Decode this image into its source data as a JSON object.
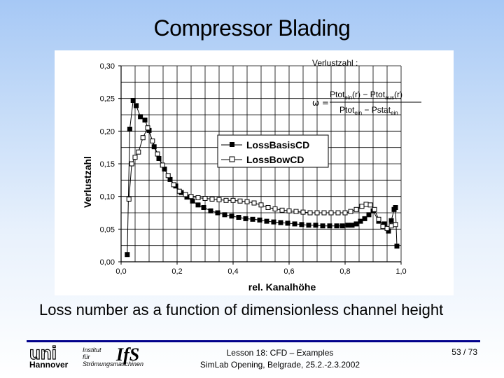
{
  "slide": {
    "title": "Compressor Blading",
    "caption": "Loss number as a function of dimensionless channel height"
  },
  "footer": {
    "lesson": "Lesson 18: CFD – Examples",
    "event": "SimLab Opening, Belgrade, 25.2.-2.3.2002",
    "page": "53 / 73",
    "logo_uni": "uni",
    "logo_hannover": "Hannover",
    "logo_institut_line1": "Institut",
    "logo_institut_line2": "für",
    "logo_institut_line3": "Strömungsmaschinen",
    "logo_ifs": "IfS",
    "rule_color": "#00008b"
  },
  "formula": {
    "label": "Verlustzahl :",
    "symbol": "ω =",
    "numerator": [
      "Ptot",
      "ein",
      "(r) − Ptot",
      "aus",
      "(r)"
    ],
    "denominator": [
      "Ptot",
      "ein",
      " − Pstat",
      "ein"
    ]
  },
  "chart_data": {
    "type": "line",
    "xlabel": "rel. Kanalhöhe",
    "ylabel": "Verlustzahl",
    "xlim": [
      0,
      1
    ],
    "ylim": [
      0,
      0.3
    ],
    "xticks": [
      "0,0",
      "0,2",
      "0,4",
      "0,6",
      "0,8",
      "1,0"
    ],
    "xtick_values": [
      0,
      0.2,
      0.4,
      0.6,
      0.8,
      1.0
    ],
    "yticks": [
      "0,00",
      "0,05",
      "0,10",
      "0,15",
      "0,20",
      "0,25",
      "0,30"
    ],
    "ytick_values": [
      0,
      0.05,
      0.1,
      0.15,
      0.2,
      0.25,
      0.3
    ],
    "grid": true,
    "legend_position": "center",
    "series": [
      {
        "name": "LossBasisCD",
        "marker": "filled-square",
        "color": "#000000",
        "x": [
          0.022,
          0.031,
          0.043,
          0.054,
          0.069,
          0.085,
          0.1,
          0.118,
          0.135,
          0.155,
          0.175,
          0.195,
          0.215,
          0.235,
          0.255,
          0.275,
          0.295,
          0.32,
          0.345,
          0.37,
          0.395,
          0.42,
          0.445,
          0.47,
          0.495,
          0.52,
          0.545,
          0.57,
          0.595,
          0.62,
          0.645,
          0.67,
          0.695,
          0.72,
          0.745,
          0.77,
          0.79,
          0.81,
          0.825,
          0.84,
          0.855,
          0.87,
          0.885,
          0.9,
          0.92,
          0.94,
          0.955,
          0.965,
          0.975,
          0.98,
          0.985
        ],
        "y": [
          0.011,
          0.203,
          0.247,
          0.239,
          0.222,
          0.217,
          0.201,
          0.176,
          0.158,
          0.142,
          0.126,
          0.116,
          0.106,
          0.099,
          0.093,
          0.087,
          0.083,
          0.078,
          0.075,
          0.072,
          0.07,
          0.068,
          0.066,
          0.065,
          0.064,
          0.062,
          0.061,
          0.06,
          0.059,
          0.058,
          0.057,
          0.056,
          0.056,
          0.055,
          0.055,
          0.055,
          0.055,
          0.056,
          0.056,
          0.058,
          0.062,
          0.066,
          0.072,
          0.078,
          0.062,
          0.058,
          0.047,
          0.063,
          0.08,
          0.083,
          0.024
        ]
      },
      {
        "name": "LossBowCD",
        "marker": "open-square",
        "color": "#000000",
        "x": [
          0.028,
          0.038,
          0.05,
          0.062,
          0.078,
          0.095,
          0.112,
          0.13,
          0.148,
          0.168,
          0.188,
          0.208,
          0.23,
          0.25,
          0.275,
          0.3,
          0.325,
          0.35,
          0.375,
          0.4,
          0.425,
          0.45,
          0.475,
          0.5,
          0.525,
          0.55,
          0.575,
          0.6,
          0.625,
          0.65,
          0.675,
          0.7,
          0.725,
          0.75,
          0.775,
          0.8,
          0.82,
          0.84,
          0.86,
          0.875,
          0.89,
          0.905,
          0.92,
          0.935,
          0.95,
          0.965,
          0.98
        ],
        "y": [
          0.096,
          0.15,
          0.16,
          0.168,
          0.19,
          0.205,
          0.185,
          0.165,
          0.148,
          0.132,
          0.118,
          0.108,
          0.103,
          0.1,
          0.098,
          0.097,
          0.096,
          0.095,
          0.094,
          0.094,
          0.093,
          0.092,
          0.09,
          0.087,
          0.083,
          0.081,
          0.079,
          0.078,
          0.077,
          0.076,
          0.075,
          0.075,
          0.075,
          0.075,
          0.075,
          0.075,
          0.077,
          0.08,
          0.085,
          0.088,
          0.087,
          0.08,
          0.065,
          0.054,
          0.051,
          0.055,
          0.057
        ]
      }
    ]
  }
}
